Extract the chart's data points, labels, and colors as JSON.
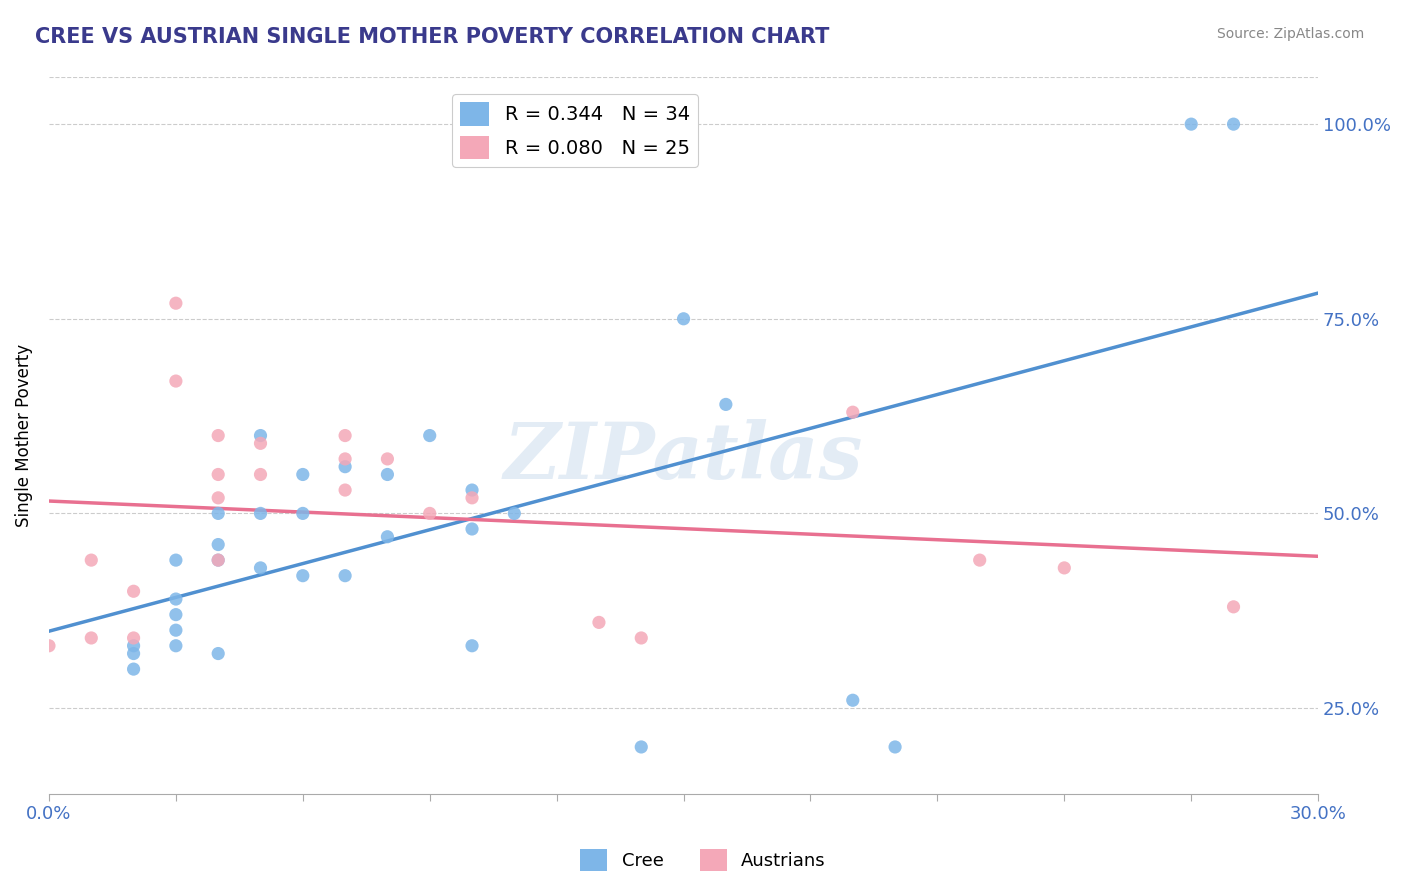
{
  "title": "CREE VS AUSTRIAN SINGLE MOTHER POVERTY CORRELATION CHART",
  "source": "Source: ZipAtlas.com",
  "ylabel": "Single Mother Poverty",
  "xlim": [
    0.0,
    0.3
  ],
  "ylim": [
    0.14,
    1.06
  ],
  "yticks": [
    0.25,
    0.5,
    0.75,
    1.0
  ],
  "xticks": [
    0.0,
    0.03,
    0.06,
    0.09,
    0.12,
    0.15,
    0.18,
    0.21,
    0.24,
    0.27,
    0.3
  ],
  "cree_R": 0.344,
  "cree_N": 34,
  "austrian_R": 0.08,
  "austrian_N": 25,
  "cree_color": "#7EB6E8",
  "austrian_color": "#F4A8B8",
  "cree_line_color": "#5090D0",
  "austrian_line_color": "#E87090",
  "watermark": "ZIPatlas",
  "cree_x": [
    0.02,
    0.02,
    0.02,
    0.03,
    0.03,
    0.03,
    0.03,
    0.03,
    0.04,
    0.04,
    0.04,
    0.04,
    0.05,
    0.05,
    0.05,
    0.06,
    0.06,
    0.06,
    0.07,
    0.07,
    0.08,
    0.08,
    0.09,
    0.1,
    0.1,
    0.1,
    0.11,
    0.14,
    0.15,
    0.16,
    0.19,
    0.2,
    0.27,
    0.28
  ],
  "cree_y": [
    0.33,
    0.32,
    0.3,
    0.44,
    0.39,
    0.37,
    0.35,
    0.33,
    0.5,
    0.46,
    0.44,
    0.32,
    0.6,
    0.5,
    0.43,
    0.55,
    0.5,
    0.42,
    0.56,
    0.42,
    0.55,
    0.47,
    0.6,
    0.53,
    0.48,
    0.33,
    0.5,
    0.2,
    0.75,
    0.64,
    0.26,
    0.2,
    1.0,
    1.0
  ],
  "austrian_x": [
    0.0,
    0.01,
    0.01,
    0.02,
    0.02,
    0.03,
    0.03,
    0.04,
    0.04,
    0.04,
    0.04,
    0.05,
    0.05,
    0.07,
    0.07,
    0.07,
    0.08,
    0.09,
    0.1,
    0.13,
    0.14,
    0.19,
    0.22,
    0.24,
    0.28
  ],
  "austrian_y": [
    0.33,
    0.44,
    0.34,
    0.4,
    0.34,
    0.77,
    0.67,
    0.6,
    0.55,
    0.52,
    0.44,
    0.59,
    0.55,
    0.6,
    0.57,
    0.53,
    0.57,
    0.5,
    0.52,
    0.36,
    0.34,
    0.63,
    0.44,
    0.43,
    0.38
  ]
}
